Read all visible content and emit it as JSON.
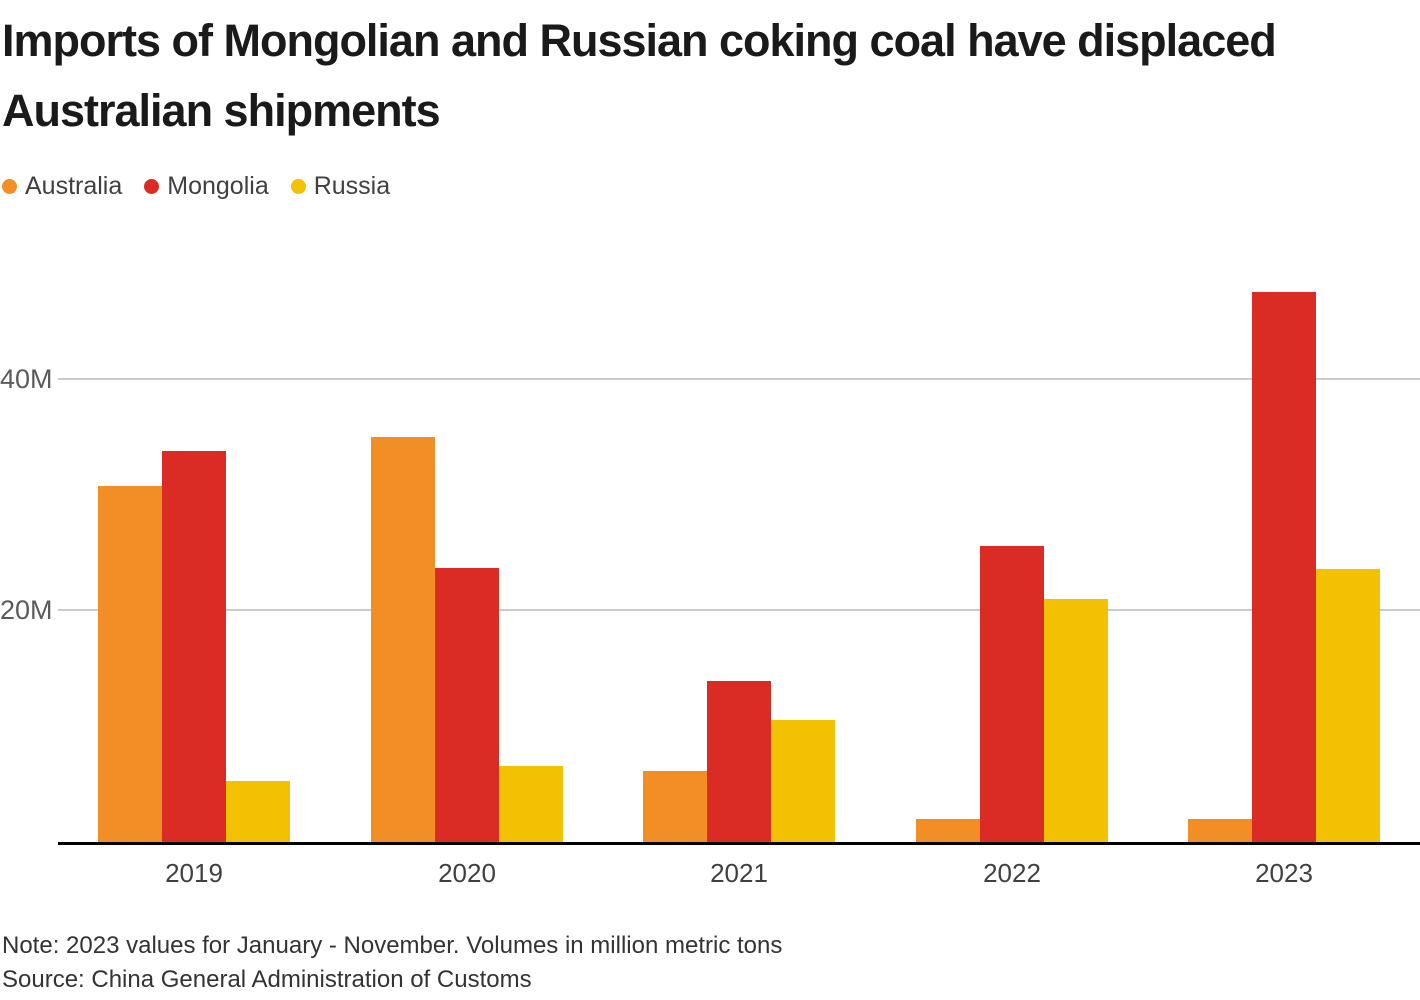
{
  "title": "Imports of Mongolian and Russian coking coal have displaced\nAustralian shipments",
  "footer": {
    "note": "Note: 2023 values for January - November. Volumes in million metric tons",
    "source": "Source: China General Administration of Customs"
  },
  "chart_data": {
    "type": "bar",
    "title": "Imports of Mongolian and Russian coking coal have displaced Australian shipments",
    "categories": [
      "2019",
      "2020",
      "2021",
      "2022",
      "2023"
    ],
    "series": [
      {
        "name": "Australia",
        "color": "#F28E26",
        "values": [
          30.7,
          35.0,
          6.1,
          2.0,
          2.0
        ]
      },
      {
        "name": "Mongolia",
        "color": "#DA2C25",
        "values": [
          33.8,
          23.7,
          13.9,
          25.6,
          47.5
        ]
      },
      {
        "name": "Russia",
        "color": "#F1C102",
        "values": [
          5.3,
          6.6,
          10.5,
          21.0,
          23.6
        ]
      }
    ],
    "unit": "million metric tons",
    "xlabel": "",
    "ylabel": "",
    "ylim": [
      0,
      50.3
    ],
    "yticks": [
      {
        "value": 20,
        "label": "20M"
      },
      {
        "value": 40,
        "label": "40M"
      }
    ],
    "grid": true,
    "legend_position": "top-left",
    "colors": {
      "gridline": "#CBCBCB",
      "axis": "#000000",
      "tick_text": "#5B5B5B",
      "category_text": "#404040",
      "title_text": "#1A1A1A",
      "footer_text": "#333333"
    }
  }
}
